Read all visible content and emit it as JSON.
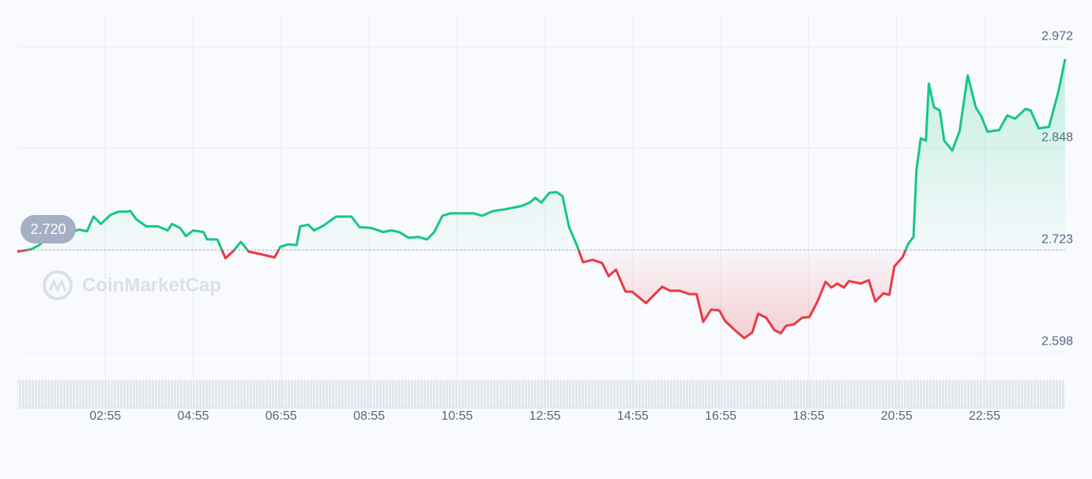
{
  "chart_data": {
    "type": "line",
    "watermark": "CoinMarketCap",
    "badge": {
      "value": 2.72,
      "label": "2.720"
    },
    "baseline": 2.723,
    "color_up": "#16c784",
    "color_down": "#ea3943",
    "grid": true,
    "xlim": [
      55,
      1485
    ],
    "ylim": [
      2.579,
      3.01
    ],
    "xticks": [
      {
        "value": 175,
        "label": "02:55"
      },
      {
        "value": 295,
        "label": "04:55"
      },
      {
        "value": 415,
        "label": "06:55"
      },
      {
        "value": 535,
        "label": "08:55"
      },
      {
        "value": 655,
        "label": "10:55"
      },
      {
        "value": 775,
        "label": "12:55"
      },
      {
        "value": 895,
        "label": "14:55"
      },
      {
        "value": 1015,
        "label": "16:55"
      },
      {
        "value": 1135,
        "label": "18:55"
      },
      {
        "value": 1255,
        "label": "20:55"
      },
      {
        "value": 1375,
        "label": "22:55"
      }
    ],
    "yticks": [
      2.598,
      2.723,
      2.848,
      2.972
    ],
    "x": [
      55,
      74,
      85,
      96,
      107,
      118,
      128,
      139,
      150,
      159,
      169,
      182,
      193,
      204,
      209,
      217,
      231,
      247,
      260,
      266,
      277,
      285,
      295,
      309,
      314,
      328,
      339,
      349,
      360,
      371,
      382,
      396,
      406,
      414,
      425,
      436,
      441,
      452,
      460,
      473,
      490,
      511,
      522,
      538,
      554,
      565,
      576,
      589,
      603,
      614,
      624,
      635,
      646,
      662,
      678,
      689,
      705,
      721,
      743,
      754,
      762,
      770,
      781,
      791,
      799,
      808,
      819,
      827,
      840,
      853,
      862,
      872,
      885,
      894,
      902,
      913,
      924,
      935,
      946,
      959,
      972,
      982,
      991,
      1002,
      1013,
      1021,
      1034,
      1047,
      1058,
      1066,
      1077,
      1088,
      1097,
      1104,
      1115,
      1126,
      1136,
      1147,
      1158,
      1166,
      1174,
      1183,
      1190,
      1206,
      1217,
      1226,
      1237,
      1245,
      1252,
      1263,
      1271,
      1278,
      1282,
      1288,
      1295,
      1299,
      1306,
      1314,
      1320,
      1331,
      1341,
      1352,
      1363,
      1371,
      1379,
      1395,
      1406,
      1417,
      1431,
      1438,
      1449,
      1463,
      1476,
      1485
    ],
    "values": [
      2.721,
      2.724,
      2.729,
      2.739,
      2.748,
      2.746,
      2.745,
      2.748,
      2.746,
      2.764,
      2.755,
      2.766,
      2.77,
      2.77,
      2.771,
      2.761,
      2.752,
      2.752,
      2.747,
      2.755,
      2.75,
      2.74,
      2.747,
      2.745,
      2.736,
      2.736,
      2.713,
      2.721,
      2.733,
      2.721,
      2.719,
      2.716,
      2.714,
      2.727,
      2.73,
      2.729,
      2.752,
      2.754,
      2.747,
      2.753,
      2.764,
      2.764,
      2.751,
      2.75,
      2.745,
      2.747,
      2.745,
      2.738,
      2.739,
      2.736,
      2.745,
      2.765,
      2.768,
      2.768,
      2.768,
      2.765,
      2.771,
      2.773,
      2.777,
      2.781,
      2.787,
      2.781,
      2.793,
      2.794,
      2.789,
      2.751,
      2.728,
      2.708,
      2.711,
      2.707,
      2.691,
      2.699,
      2.672,
      2.672,
      2.666,
      2.658,
      2.668,
      2.678,
      2.673,
      2.673,
      2.669,
      2.669,
      2.635,
      2.65,
      2.649,
      2.636,
      2.625,
      2.615,
      2.622,
      2.645,
      2.64,
      2.625,
      2.621,
      2.63,
      2.632,
      2.64,
      2.641,
      2.66,
      2.684,
      2.677,
      2.682,
      2.677,
      2.685,
      2.682,
      2.686,
      2.66,
      2.67,
      2.668,
      2.703,
      2.714,
      2.731,
      2.739,
      2.821,
      2.86,
      2.857,
      2.927,
      2.898,
      2.894,
      2.857,
      2.845,
      2.869,
      2.937,
      2.898,
      2.886,
      2.868,
      2.87,
      2.888,
      2.884,
      2.896,
      2.894,
      2.872,
      2.874,
      2.918,
      2.957
    ]
  }
}
